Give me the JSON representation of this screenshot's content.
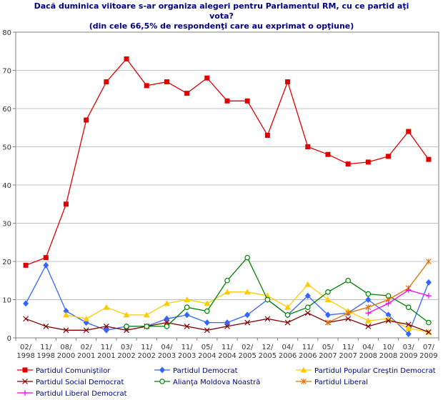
{
  "title_lines": [
    "Dacă duminica viitoare s-ar organiza alegeri pentru Parlamentul RM, cu ce partid aţi",
    "vota?",
    "(din cele 66,5% de respondenţi care au exprimat o opţiune)"
  ],
  "chart_data": {
    "type": "line",
    "title": "Dacă duminica viitoare s-ar organiza alegeri pentru Parlamentul RM, cu ce partid aţi vota? (din cele 66,5% de respondenţi care au exprimat o opţiune)",
    "xlabel": "",
    "ylabel": "",
    "ylim": [
      0,
      80
    ],
    "yticks": [
      0,
      10,
      20,
      30,
      40,
      50,
      60,
      70,
      80
    ],
    "grid": true,
    "legend_position": "bottom",
    "categories": [
      [
        "02/",
        "1998"
      ],
      [
        "11/",
        "1998"
      ],
      [
        "08/",
        "2000"
      ],
      [
        "02/",
        "2001"
      ],
      [
        "11/",
        "2001"
      ],
      [
        "03/",
        "2002"
      ],
      [
        "11/",
        "2002"
      ],
      [
        "04/",
        "2003"
      ],
      [
        "11/",
        "2003"
      ],
      [
        "05/",
        "2004"
      ],
      [
        "11/",
        "2004"
      ],
      [
        "02/",
        "2005"
      ],
      [
        "12/",
        "2005"
      ],
      [
        "04/",
        "2006"
      ],
      [
        "11/",
        "2006"
      ],
      [
        "05/",
        "2007"
      ],
      [
        "11/",
        "2007"
      ],
      [
        "04/",
        "2008"
      ],
      [
        "10/",
        "2008"
      ],
      [
        "03/",
        "2009"
      ],
      [
        "07/",
        "2009"
      ]
    ],
    "series": [
      {
        "name": "Partidul Comuniştilor",
        "color": "#e00000",
        "marker": "square",
        "values": [
          19,
          21,
          35,
          57,
          67,
          73,
          66,
          67,
          64,
          68,
          62,
          62,
          53,
          67,
          50,
          48,
          45.5,
          46,
          47.5,
          54,
          46.7
        ]
      },
      {
        "name": "Partidul Democrat",
        "color": "#3366ff",
        "marker": "diamond",
        "values": [
          9,
          19,
          7,
          4,
          2,
          3,
          3,
          5,
          6,
          4,
          4,
          6,
          10,
          6,
          11,
          6,
          6.5,
          10,
          6,
          1,
          14.5
        ]
      },
      {
        "name": "Partidul Popular Creştin Democrat",
        "color": "#ffcc00",
        "marker": "triangle",
        "values": [
          null,
          null,
          6,
          5,
          8,
          6,
          6,
          9,
          10,
          9,
          12,
          12,
          11,
          8,
          14,
          10,
          7,
          4.5,
          5,
          2.5,
          1.5
        ]
      },
      {
        "name": "Partidul Social Democrat",
        "color": "#800000",
        "marker": "x",
        "values": [
          5,
          3,
          2,
          2,
          3,
          2,
          3,
          4,
          3,
          2,
          3,
          4,
          5,
          4,
          6.5,
          4,
          5,
          3,
          4.5,
          3.5,
          1.5
        ]
      },
      {
        "name": "Alianţa Moldova Noastră",
        "color": "#008000",
        "marker": "circle",
        "values": [
          null,
          null,
          null,
          null,
          null,
          3,
          3,
          3,
          8,
          7,
          15,
          21,
          10,
          6,
          8,
          12,
          15,
          11.5,
          11,
          8,
          4
        ]
      },
      {
        "name": "Partidul Liberal",
        "color": "#e07000",
        "marker": "star",
        "values": [
          null,
          null,
          null,
          null,
          null,
          null,
          null,
          null,
          null,
          null,
          null,
          null,
          null,
          null,
          null,
          4,
          6.5,
          8,
          10,
          13,
          20
        ]
      },
      {
        "name": "Partidul Liberal Democrat",
        "color": "#ff00ff",
        "marker": "plus",
        "values": [
          null,
          null,
          null,
          null,
          null,
          null,
          null,
          null,
          null,
          null,
          null,
          null,
          null,
          null,
          null,
          null,
          null,
          6.5,
          9,
          12.5,
          11
        ]
      }
    ]
  }
}
